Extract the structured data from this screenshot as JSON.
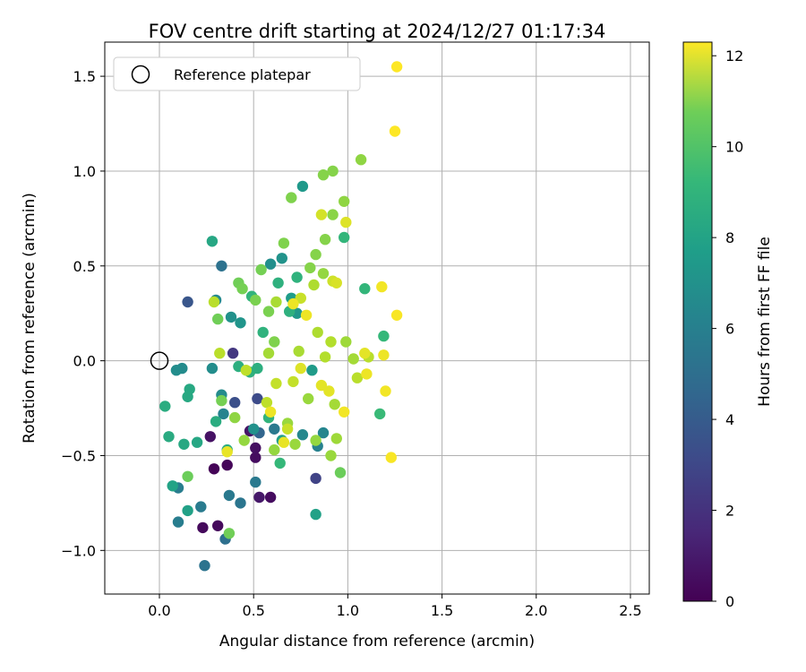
{
  "chart_data": {
    "type": "scatter",
    "title": "FOV centre drift starting at 2024/12/27 01:17:34",
    "xlabel": "Angular distance from reference (arcmin)",
    "ylabel": "Rotation from reference (arcmin)",
    "xlim": [
      -0.29,
      2.6
    ],
    "ylim": [
      -1.23,
      1.68
    ],
    "xticks": [
      0.0,
      0.5,
      1.0,
      1.5,
      2.0,
      2.5
    ],
    "xtick_labels": [
      "0.0",
      "0.5",
      "1.0",
      "1.5",
      "2.0",
      "2.5"
    ],
    "yticks": [
      -1.0,
      -0.5,
      0.0,
      0.5,
      1.0,
      1.5
    ],
    "ytick_labels": [
      "−1.0",
      "−0.5",
      "0.0",
      "0.5",
      "1.0",
      "1.5"
    ],
    "grid": true,
    "legend": {
      "placement": "top-left",
      "entries": [
        "Reference platepar"
      ]
    },
    "reference_point": {
      "name": "Reference platepar",
      "x": 0.0,
      "y": 0.0
    },
    "colorbar": {
      "label": "Hours from first FF file",
      "range": [
        0,
        12.3
      ],
      "ticks": [
        0,
        2,
        4,
        6,
        8,
        10,
        12
      ],
      "tick_labels": [
        "0",
        "2",
        "4",
        "6",
        "8",
        "10",
        "12"
      ],
      "colormap": "viridis"
    },
    "points": [
      [
        0.29,
        -0.57,
        0.1
      ],
      [
        0.36,
        -0.55,
        0.2
      ],
      [
        0.23,
        -0.88,
        0.3
      ],
      [
        0.31,
        -0.87,
        0.3
      ],
      [
        0.51,
        -0.51,
        0.4
      ],
      [
        0.51,
        -0.46,
        0.5
      ],
      [
        0.59,
        -0.72,
        0.4
      ],
      [
        0.53,
        -0.72,
        0.8
      ],
      [
        0.27,
        -0.4,
        0.6
      ],
      [
        0.48,
        -0.37,
        0.7
      ],
      [
        0.83,
        -0.62,
        2.5
      ],
      [
        0.52,
        -0.2,
        2.8
      ],
      [
        0.15,
        0.31,
        3.3
      ],
      [
        0.39,
        0.04,
        2.0
      ],
      [
        0.4,
        -0.22,
        3.0
      ],
      [
        0.53,
        -0.38,
        4.0
      ],
      [
        0.35,
        -0.94,
        4.5
      ],
      [
        0.24,
        -1.08,
        4.7
      ],
      [
        0.43,
        -0.75,
        4.8
      ],
      [
        0.37,
        -0.71,
        5.0
      ],
      [
        0.22,
        -0.77,
        5.1
      ],
      [
        0.1,
        -0.85,
        5.2
      ],
      [
        0.1,
        -0.67,
        5.2
      ],
      [
        0.51,
        -0.64,
        5.0
      ],
      [
        0.33,
        0.5,
        4.6
      ],
      [
        0.34,
        -0.28,
        5.5
      ],
      [
        0.61,
        -0.36,
        5.0
      ],
      [
        0.84,
        -0.45,
        5.4
      ],
      [
        0.87,
        -0.38,
        5.6
      ],
      [
        0.76,
        -0.39,
        5.7
      ],
      [
        0.3,
        0.32,
        5.8
      ],
      [
        0.12,
        -0.04,
        5.9
      ],
      [
        0.09,
        -0.05,
        6.0
      ],
      [
        0.28,
        -0.04,
        6.0
      ],
      [
        0.38,
        0.23,
        6.2
      ],
      [
        0.43,
        0.2,
        6.4
      ],
      [
        0.33,
        -0.18,
        5.9
      ],
      [
        0.59,
        0.51,
        6.1
      ],
      [
        0.65,
        0.54,
        6.3
      ],
      [
        0.76,
        0.92,
        6.6
      ],
      [
        0.81,
        -0.05,
        6.7
      ],
      [
        0.73,
        0.25,
        6.5
      ],
      [
        0.7,
        0.33,
        6.8
      ],
      [
        0.5,
        -0.36,
        6.2
      ],
      [
        0.65,
        -0.42,
        6.9
      ],
      [
        0.83,
        -0.81,
        7.0
      ],
      [
        0.15,
        -0.79,
        7.0
      ],
      [
        0.07,
        -0.66,
        7.1
      ],
      [
        0.28,
        0.63,
        7.3
      ],
      [
        0.2,
        -0.43,
        7.3
      ],
      [
        0.13,
        -0.44,
        7.4
      ],
      [
        0.16,
        -0.15,
        7.4
      ],
      [
        0.05,
        -0.4,
        7.5
      ],
      [
        0.03,
        -0.24,
        7.6
      ],
      [
        0.15,
        -0.19,
        7.4
      ],
      [
        0.3,
        -0.32,
        7.6
      ],
      [
        0.36,
        -0.47,
        7.6
      ],
      [
        0.42,
        -0.03,
        7.7
      ],
      [
        0.48,
        -0.06,
        7.8
      ],
      [
        0.52,
        -0.04,
        7.7
      ],
      [
        0.63,
        0.41,
        7.8
      ],
      [
        0.69,
        0.26,
        7.8
      ],
      [
        0.73,
        0.44,
        7.9
      ],
      [
        0.55,
        0.15,
        7.9
      ],
      [
        0.49,
        0.34,
        8.0
      ],
      [
        0.58,
        -0.3,
        8.0
      ],
      [
        0.64,
        -0.54,
        8.2
      ],
      [
        1.09,
        0.38,
        8.1
      ],
      [
        0.98,
        0.65,
        8.1
      ],
      [
        1.17,
        -0.28,
        8.3
      ],
      [
        1.19,
        0.13,
        8.2
      ],
      [
        0.96,
        -0.59,
        9.5
      ],
      [
        0.37,
        -0.91,
        9.6
      ],
      [
        0.15,
        -0.61,
        9.5
      ],
      [
        0.33,
        -0.21,
        9.7
      ],
      [
        0.31,
        0.22,
        9.6
      ],
      [
        0.42,
        0.41,
        9.6
      ],
      [
        0.44,
        0.38,
        9.7
      ],
      [
        0.51,
        0.32,
        9.8
      ],
      [
        0.54,
        0.48,
        9.7
      ],
      [
        0.58,
        0.26,
        9.8
      ],
      [
        0.61,
        0.1,
        9.9
      ],
      [
        0.66,
        0.62,
        9.9
      ],
      [
        0.7,
        0.86,
        9.9
      ],
      [
        0.8,
        0.49,
        10.0
      ],
      [
        0.83,
        0.56,
        10.0
      ],
      [
        0.87,
        0.98,
        10.0
      ],
      [
        0.92,
        1.0,
        10.0
      ],
      [
        0.92,
        0.77,
        10.1
      ],
      [
        0.98,
        0.84,
        10.2
      ],
      [
        1.07,
        1.06,
        10.2
      ],
      [
        0.88,
        0.64,
        10.0
      ],
      [
        0.87,
        0.46,
        10.3
      ],
      [
        0.4,
        -0.3,
        10.2
      ],
      [
        0.45,
        -0.42,
        10.3
      ],
      [
        0.61,
        -0.47,
        10.3
      ],
      [
        0.68,
        -0.33,
        10.4
      ],
      [
        0.72,
        -0.44,
        10.4
      ],
      [
        0.79,
        -0.2,
        10.4
      ],
      [
        0.83,
        -0.42,
        10.3
      ],
      [
        0.91,
        -0.5,
        10.4
      ],
      [
        0.94,
        -0.41,
        10.5
      ],
      [
        0.93,
        -0.23,
        10.6
      ],
      [
        0.99,
        0.1,
        10.5
      ],
      [
        1.03,
        0.01,
        10.6
      ],
      [
        0.58,
        0.04,
        10.6
      ],
      [
        0.62,
        0.31,
        10.7
      ],
      [
        0.74,
        0.05,
        10.7
      ],
      [
        0.82,
        0.4,
        10.8
      ],
      [
        0.91,
        0.1,
        10.9
      ],
      [
        0.88,
        0.02,
        10.9
      ],
      [
        0.84,
        0.15,
        10.8
      ],
      [
        1.05,
        -0.09,
        11.0
      ],
      [
        1.11,
        0.02,
        11.0
      ],
      [
        0.29,
        0.31,
        11.0
      ],
      [
        0.32,
        0.04,
        11.0
      ],
      [
        0.46,
        -0.05,
        11.1
      ],
      [
        0.57,
        -0.22,
        11.1
      ],
      [
        0.62,
        -0.12,
        11.2
      ],
      [
        0.71,
        -0.11,
        11.2
      ],
      [
        0.68,
        -0.36,
        11.3
      ],
      [
        0.75,
        0.33,
        11.3
      ],
      [
        0.92,
        0.42,
        11.4
      ],
      [
        0.86,
        0.77,
        11.5
      ],
      [
        0.99,
        0.73,
        11.7
      ],
      [
        0.94,
        0.41,
        11.6
      ],
      [
        0.86,
        -0.13,
        11.8
      ],
      [
        0.9,
        -0.16,
        11.8
      ],
      [
        1.09,
        0.04,
        11.8
      ],
      [
        1.1,
        -0.07,
        12.0
      ],
      [
        1.19,
        0.03,
        12.0
      ],
      [
        1.18,
        0.39,
        12.1
      ],
      [
        1.2,
        -0.16,
        12.1
      ],
      [
        1.23,
        -0.51,
        12.2
      ],
      [
        1.26,
        0.24,
        12.2
      ],
      [
        1.25,
        1.21,
        12.3
      ],
      [
        1.26,
        1.55,
        12.3
      ],
      [
        0.98,
        -0.27,
        12.1
      ],
      [
        0.71,
        0.3,
        12.0
      ],
      [
        0.66,
        -0.43,
        11.9
      ],
      [
        0.59,
        -0.27,
        12.0
      ],
      [
        0.36,
        -0.48,
        11.9
      ],
      [
        0.75,
        -0.04,
        11.7
      ],
      [
        0.78,
        0.24,
        12.0
      ]
    ]
  }
}
